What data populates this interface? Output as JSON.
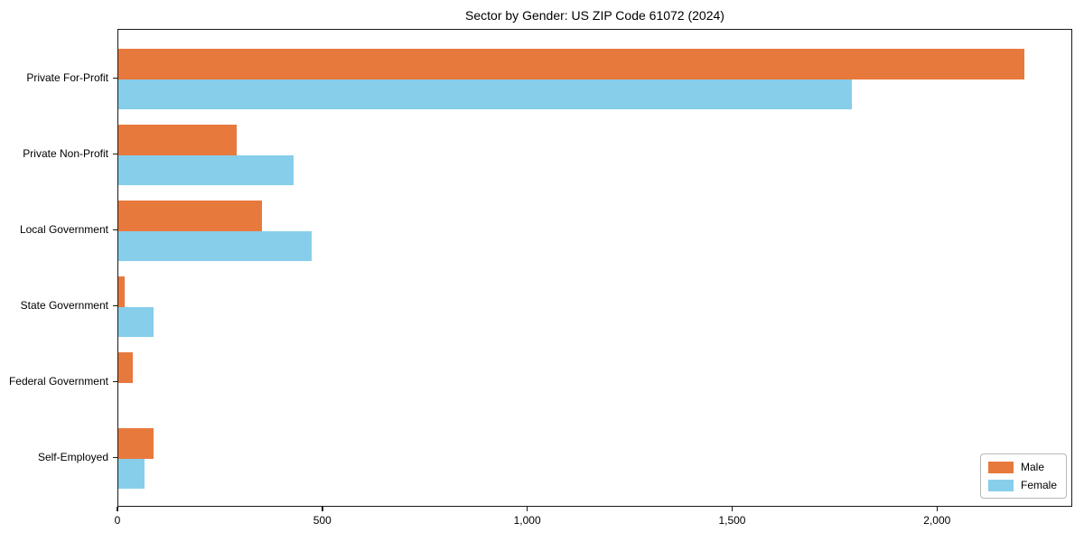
{
  "chart_data": {
    "type": "bar",
    "orientation": "horizontal",
    "title": "Sector by Gender: US ZIP Code 61072 (2024)",
    "categories": [
      "Private For-Profit",
      "Private Non-Profit",
      "Local Government",
      "State Government",
      "Federal Government",
      "Self-Employed"
    ],
    "series": [
      {
        "name": "Male",
        "color": "#e8793d",
        "values": [
          2215,
          290,
          352,
          15,
          35,
          87
        ]
      },
      {
        "name": "Female",
        "color": "#87ceeb",
        "values": [
          1793,
          428,
          473,
          87,
          0,
          65
        ]
      }
    ],
    "xlabel": "",
    "ylabel": "",
    "xlim": [
      0,
      2330
    ],
    "xticks": [
      {
        "value": 0,
        "label": "0"
      },
      {
        "value": 500,
        "label": "500"
      },
      {
        "value": 1000,
        "label": "1,000"
      },
      {
        "value": 1500,
        "label": "1,500"
      },
      {
        "value": 2000,
        "label": "2,000"
      }
    ],
    "grid": false,
    "legend_position": "lower right",
    "plot_border_color": "#1a1a1a",
    "background_color": "#ffffff"
  }
}
